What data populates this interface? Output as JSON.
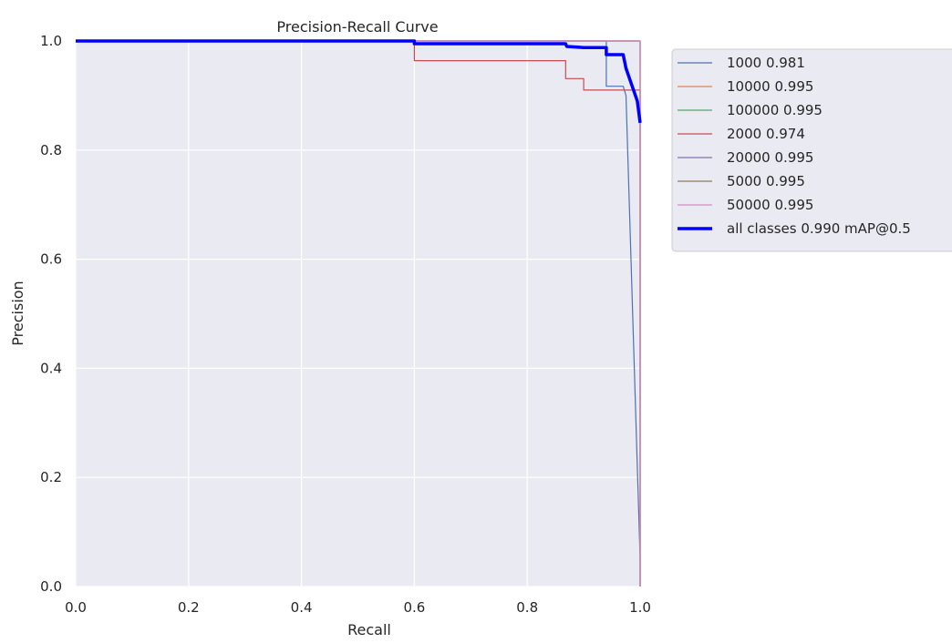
{
  "chart_data": {
    "type": "line",
    "title": "Precision-Recall Curve",
    "xlabel": "Recall",
    "ylabel": "Precision",
    "xlim": [
      0,
      1
    ],
    "ylim": [
      0,
      1
    ],
    "xticks": [
      "0.0",
      "0.2",
      "0.4",
      "0.6",
      "0.8",
      "1.0"
    ],
    "yticks": [
      "0.0",
      "0.2",
      "0.4",
      "0.6",
      "0.8",
      "1.0"
    ],
    "grid": true,
    "legend_position": "outside-right",
    "series": [
      {
        "name": "1000 0.981",
        "color": "#4c72b0",
        "width": 1.2,
        "points": [
          [
            0,
            1
          ],
          [
            0.94,
            1
          ],
          [
            0.94,
            0.917
          ],
          [
            0.97,
            0.917
          ],
          [
            0.975,
            0.9
          ],
          [
            1,
            0.05
          ],
          [
            1,
            0
          ]
        ]
      },
      {
        "name": "10000 0.995",
        "color": "#dd8452",
        "width": 1.2,
        "points": [
          [
            0,
            1
          ],
          [
            1,
            1
          ],
          [
            1,
            0
          ]
        ]
      },
      {
        "name": "100000 0.995",
        "color": "#55a868",
        "width": 1.2,
        "points": [
          [
            0,
            1
          ],
          [
            1,
            1
          ],
          [
            1,
            0
          ]
        ]
      },
      {
        "name": "2000 0.974",
        "color": "#c44e52",
        "width": 1.2,
        "points": [
          [
            0,
            1
          ],
          [
            0.6,
            1
          ],
          [
            0.6,
            0.964
          ],
          [
            0.868,
            0.964
          ],
          [
            0.868,
            0.931
          ],
          [
            0.9,
            0.931
          ],
          [
            0.9,
            0.91
          ],
          [
            1,
            0.91
          ],
          [
            1,
            0
          ]
        ]
      },
      {
        "name": "20000 0.995",
        "color": "#8172b3",
        "width": 1.2,
        "points": [
          [
            0,
            1
          ],
          [
            1,
            1
          ],
          [
            1,
            0
          ]
        ]
      },
      {
        "name": "5000 0.995",
        "color": "#937860",
        "width": 1.2,
        "points": [
          [
            0,
            1
          ],
          [
            1,
            1
          ],
          [
            1,
            0
          ]
        ]
      },
      {
        "name": "50000 0.995",
        "color": "#da8bc3",
        "width": 1.2,
        "points": [
          [
            0,
            1
          ],
          [
            1,
            1
          ],
          [
            1,
            0
          ]
        ]
      },
      {
        "name": "all classes 0.990 mAP@0.5",
        "color": "#0000ff",
        "width": 3.5,
        "points": [
          [
            0,
            1
          ],
          [
            0.6,
            1
          ],
          [
            0.6,
            0.995
          ],
          [
            0.868,
            0.995
          ],
          [
            0.87,
            0.99
          ],
          [
            0.9,
            0.988
          ],
          [
            0.94,
            0.988
          ],
          [
            0.94,
            0.975
          ],
          [
            0.97,
            0.975
          ],
          [
            0.975,
            0.95
          ],
          [
            0.985,
            0.92
          ],
          [
            0.995,
            0.89
          ],
          [
            1,
            0.85
          ]
        ]
      }
    ]
  }
}
